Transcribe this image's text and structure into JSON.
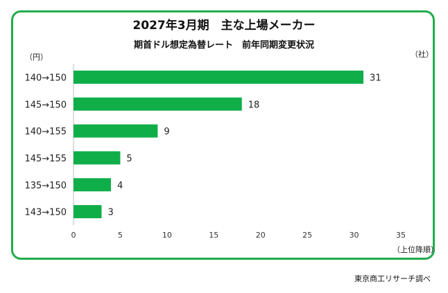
{
  "chart_data": {
    "type": "bar",
    "orientation": "horizontal",
    "title": "2027年3月期　主な上場メーカー",
    "subtitle": "期首ドル想定為替レート　前年同期変更状況",
    "category_unit": "（円）",
    "value_unit": "（社）",
    "sort_note": "（上位降順）",
    "source": "東京商工リサーチ調べ",
    "categories": [
      "140→150",
      "145→150",
      "140→155",
      "145→155",
      "135→150",
      "143→150"
    ],
    "values": [
      31,
      18,
      9,
      5,
      4,
      3
    ],
    "x_ticks": [
      0,
      5,
      10,
      15,
      20,
      25,
      30,
      35
    ],
    "xlim": [
      0,
      35
    ],
    "grid": false,
    "bar_color": "#0fae49",
    "border_color": "#21ac4c"
  }
}
